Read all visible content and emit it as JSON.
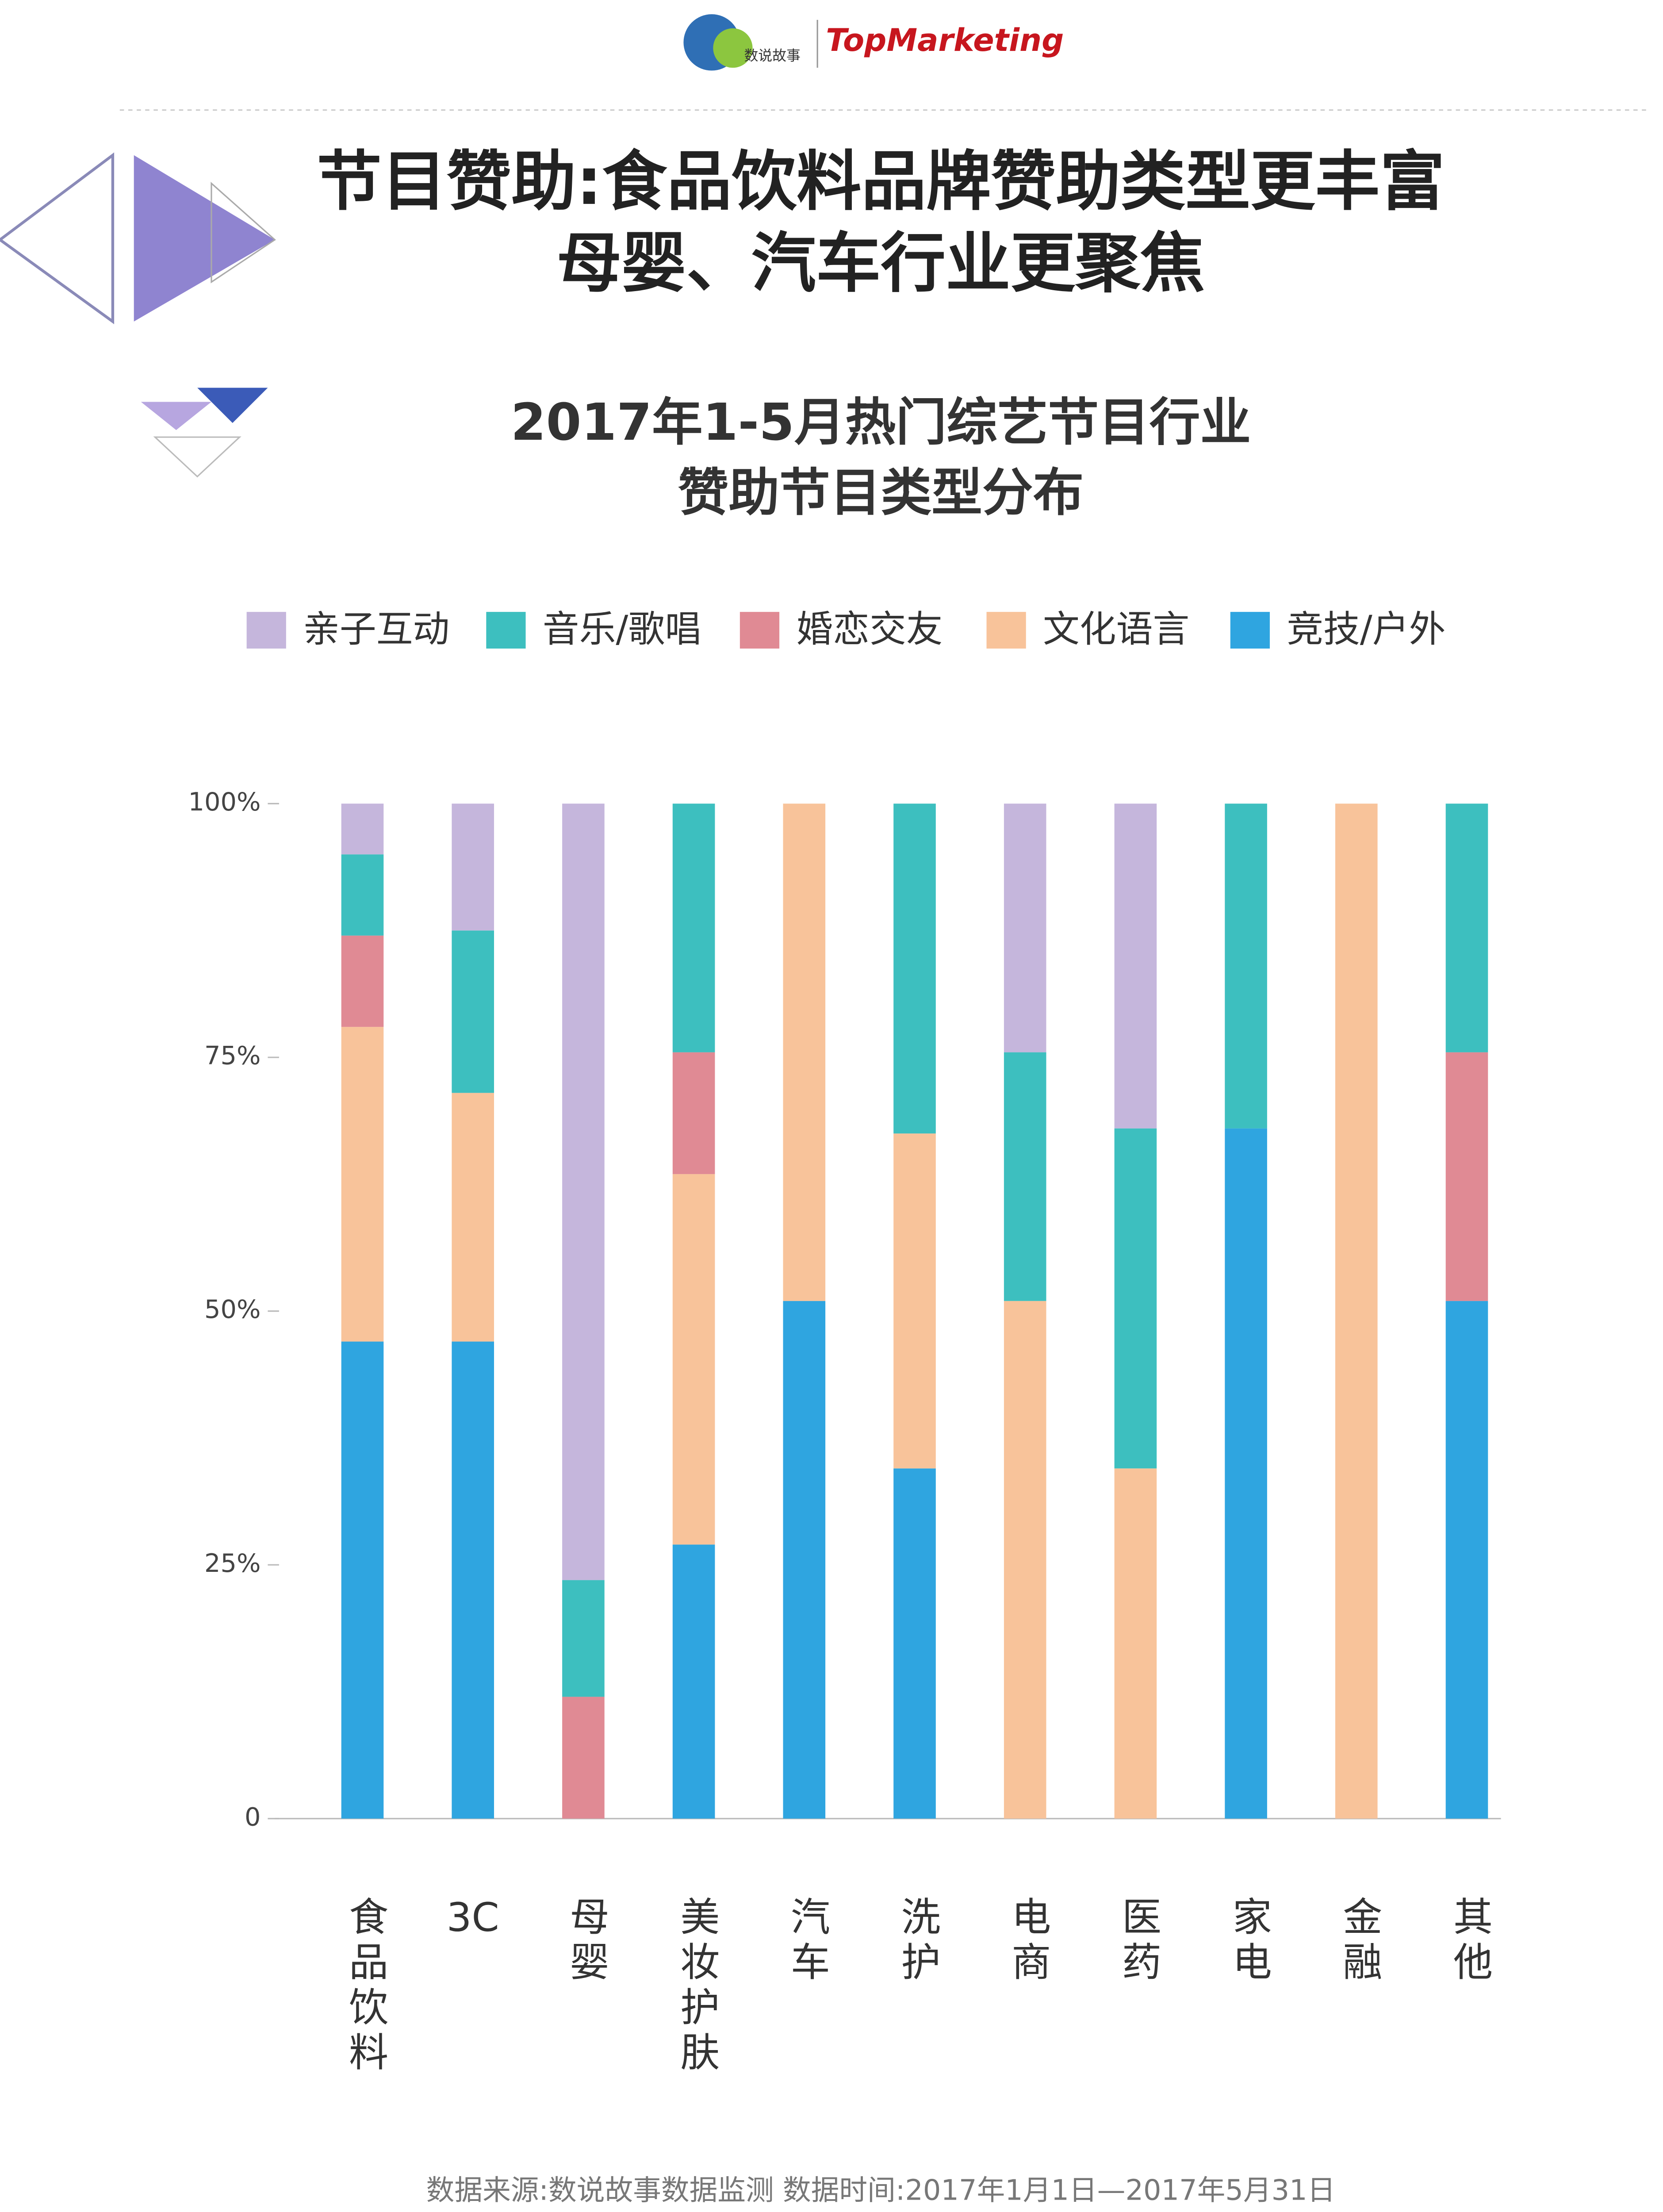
{
  "header": {
    "logo_left": "数说故事",
    "logo_right": "TopMarketing",
    "title_lines": [
      "节目赞助:食品饮料品牌赞助类型更丰富",
      "母婴、汽车行业更聚焦"
    ]
  },
  "chart_data": {
    "type": "stacked_bar",
    "title": [
      "2017年1-5月热门综艺节目行业",
      "赞助节目类型分布"
    ],
    "categories": [
      "食品饮料",
      "3C",
      "母婴",
      "美妆护肤",
      "汽车",
      "洗护",
      "电商",
      "医药",
      "家电",
      "金融",
      "其他"
    ],
    "series": [
      {
        "name": "亲子互动",
        "color": "#c5b6dc",
        "values": [
          5,
          12.5,
          76.5,
          0,
          0,
          0,
          24.5,
          32,
          0,
          0,
          0
        ]
      },
      {
        "name": "音乐/歌唱",
        "color": "#3dbfbf",
        "values": [
          8,
          16,
          11.5,
          24.5,
          0,
          32.5,
          24.5,
          33.5,
          32,
          0,
          24.5
        ]
      },
      {
        "name": "婚恋交友",
        "color": "#e08a94",
        "values": [
          9,
          0,
          12,
          12,
          0,
          0,
          0,
          0,
          0,
          0,
          24.5
        ]
      },
      {
        "name": "文化语言",
        "color": "#f8c39a",
        "values": [
          31,
          24.5,
          0,
          36.5,
          49,
          33,
          51,
          34.5,
          0,
          100,
          0
        ]
      },
      {
        "name": "竞技/户外",
        "color": "#2fa5e0",
        "values": [
          47,
          47,
          0,
          27,
          51,
          34.5,
          0,
          0,
          68,
          0,
          51
        ]
      }
    ],
    "ylim": [
      0,
      100
    ],
    "yticks": [
      0,
      {
        "value": 25,
        "label": "25%"
      },
      {
        "value": 50,
        "label": "50%"
      },
      {
        "value": 75,
        "label": "75%"
      },
      {
        "value": 100,
        "label": "100%"
      }
    ]
  },
  "footer": {
    "source": "数据来源:数说故事数据监测   数据时间:2017年1月1日—2017年5月31日"
  }
}
